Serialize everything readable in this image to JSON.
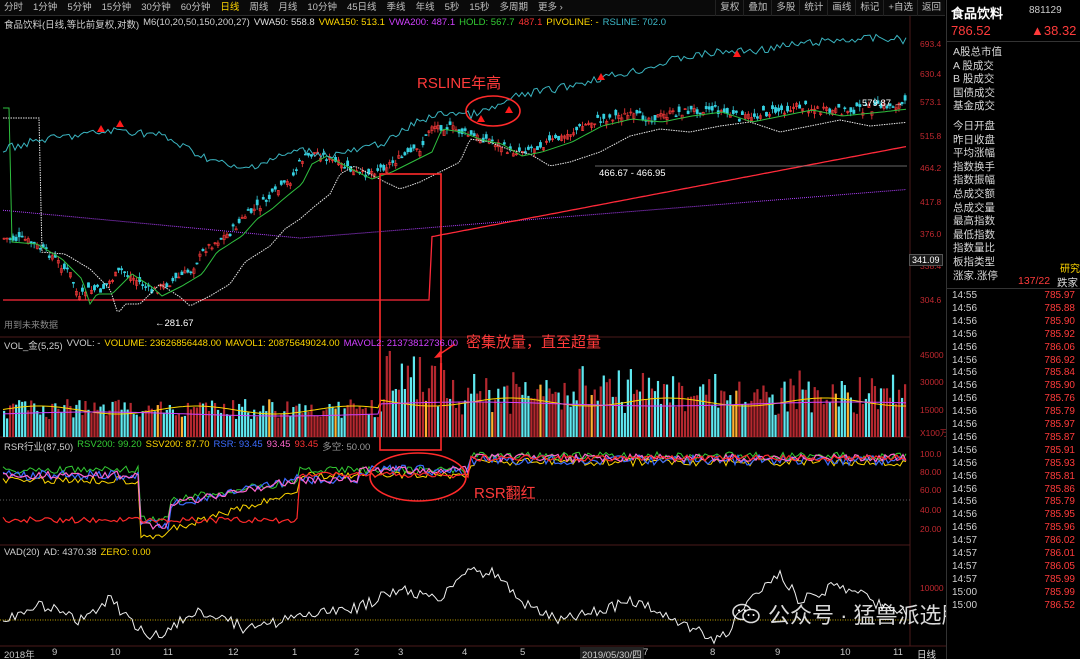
{
  "toolbar": {
    "periods": [
      "分时",
      "1分钟",
      "5分钟",
      "15分钟",
      "30分钟",
      "60分钟",
      "日线",
      "周线",
      "月线",
      "10分钟",
      "45日线",
      "季线",
      "年线",
      "5秒",
      "15秒",
      "多周期",
      "更多 ›"
    ],
    "active_period": "日线",
    "tools": [
      "复权",
      "叠加",
      "多股",
      "统计",
      "画线",
      "标记",
      "+自选",
      "返回"
    ]
  },
  "main_chart": {
    "legend": [
      {
        "text": "食品饮料(日线,等比前复权,对数)",
        "color": "#d0d0d0"
      },
      {
        "text": "M6(10,20,50,150,200,27)",
        "color": "#d0d0d0"
      },
      {
        "text": "VWA50: 558.8",
        "color": "#e0e0e0"
      },
      {
        "text": "VWA150: 513.1",
        "color": "#ffd700"
      },
      {
        "text": "VWA200: 487.1",
        "color": "#d040ff"
      },
      {
        "text": "HOLD: 567.7",
        "color": "#33cc33"
      },
      {
        "text": "487.1",
        "color": "#ff3333"
      },
      {
        "text": "PIVOLINE: -",
        "color": "#ffd700"
      },
      {
        "text": "RSLINE: 702.0",
        "color": "#3cb8c8"
      }
    ],
    "y_ticks": [
      "693.4",
      "630.4",
      "573.1",
      "515.8",
      "464.2",
      "417.8",
      "376.0",
      "338.4",
      "304.6"
    ],
    "current_price_tag": "341.09",
    "low_label": "←281.67",
    "high_label": "579.87 →",
    "range_label": "466.67 - 466.95",
    "note": "用到未来数据"
  },
  "vol_chart": {
    "legend": [
      {
        "text": "VOL_金(5,25)",
        "color": "#d0d0d0"
      },
      {
        "text": "VVOL: -",
        "color": "#d0d0d0"
      },
      {
        "text": "VOLUME: 23626856448.00",
        "color": "#ffd700"
      },
      {
        "text": "MAVOL1: 20875649024.00",
        "color": "#ffd700"
      },
      {
        "text": "MAVOL2: 21373812736.00",
        "color": "#d040ff"
      }
    ],
    "y_ticks": [
      "45000",
      "30000",
      "15000",
      "X100万"
    ]
  },
  "rsr_chart": {
    "legend": [
      {
        "text": "RSR行业(87,50)",
        "color": "#d0d0d0"
      },
      {
        "text": "RSV200: 99.20",
        "color": "#33cc33"
      },
      {
        "text": "SSV200: 87.70",
        "color": "#ffd700"
      },
      {
        "text": "RSR: 93.45",
        "color": "#3b6cff"
      },
      {
        "text": "93.45",
        "color": "#ff66cc"
      },
      {
        "text": "93.45",
        "color": "#ff3333"
      },
      {
        "text": "多空: 50.00",
        "color": "#999999"
      }
    ],
    "y_ticks": [
      "100.0",
      "80.00",
      "60.00",
      "40.00",
      "20.00"
    ]
  },
  "vad_chart": {
    "legend": [
      {
        "text": "VAD(20)",
        "color": "#d0d0d0"
      },
      {
        "text": "AD: 4370.38",
        "color": "#d0d0d0"
      },
      {
        "text": "ZERO: 0.00",
        "color": "#ffd700"
      }
    ],
    "y_ticks": [
      "10000"
    ]
  },
  "x_axis": {
    "labels": [
      "2018年",
      "9",
      "10",
      "11",
      "12",
      "1",
      "2",
      "3",
      "4",
      "5",
      "2019/05/30/四",
      "7",
      "8",
      "9",
      "10",
      "11"
    ],
    "period_button": "日线"
  },
  "annotations": {
    "rsline": "RSLINE年高",
    "volume": "密集放量，直至超量",
    "rsr": "RSR翻红"
  },
  "right_panel": {
    "name": "食品饮料",
    "code": "881129",
    "price": "786.52",
    "change": "▲38.32",
    "fields": [
      "A股总市值",
      "A 股成交",
      "B 股成交",
      "国债成交",
      "基金成交",
      "今日开盘",
      "昨日收盘",
      "平均涨幅",
      "指数换手",
      "指数振幅",
      "总成交额",
      "总成交量",
      "最高指数",
      "最低指数",
      "指数量比",
      "板指类型",
      "涨家.涨停"
    ],
    "board_type_value": "研究",
    "up_down_value": "137/22",
    "up_down_tail": "跌家",
    "ticks": [
      {
        "t": "14:55",
        "p": "785.97"
      },
      {
        "t": "14:56",
        "p": "785.88"
      },
      {
        "t": "14:56",
        "p": "785.90"
      },
      {
        "t": "14:56",
        "p": "785.92"
      },
      {
        "t": "14:56",
        "p": "786.06"
      },
      {
        "t": "14:56",
        "p": "786.92"
      },
      {
        "t": "14:56",
        "p": "785.84"
      },
      {
        "t": "14:56",
        "p": "785.90"
      },
      {
        "t": "14:56",
        "p": "785.76"
      },
      {
        "t": "14:56",
        "p": "785.79"
      },
      {
        "t": "14:56",
        "p": "785.97"
      },
      {
        "t": "14:56",
        "p": "785.87"
      },
      {
        "t": "14:56",
        "p": "785.91"
      },
      {
        "t": "14:56",
        "p": "785.93"
      },
      {
        "t": "14:56",
        "p": "785.81"
      },
      {
        "t": "14:56",
        "p": "785.86"
      },
      {
        "t": "14:56",
        "p": "785.79"
      },
      {
        "t": "14:56",
        "p": "785.95"
      },
      {
        "t": "14:56",
        "p": "785.96"
      },
      {
        "t": "14:57",
        "p": "786.02"
      },
      {
        "t": "14:57",
        "p": "786.01"
      },
      {
        "t": "14:57",
        "p": "786.05"
      },
      {
        "t": "14:57",
        "p": "785.99"
      },
      {
        "t": "15:00",
        "p": "785.99"
      },
      {
        "t": "15:00",
        "p": "786.52"
      }
    ]
  },
  "watermark": "公众号 · 猛兽派选股"
}
